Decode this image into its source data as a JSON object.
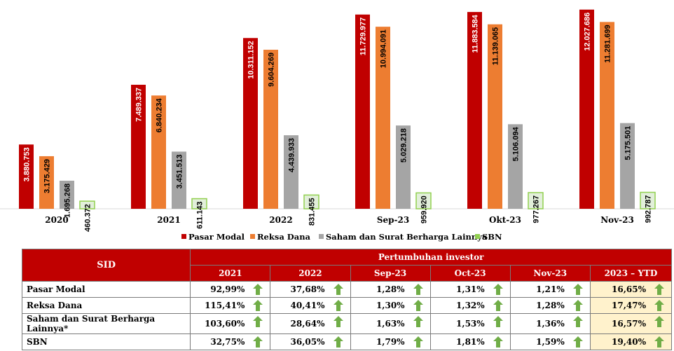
{
  "chart_data": {
    "type": "bar",
    "categories": [
      "2020",
      "2021",
      "2022",
      "Sep-23",
      "Okt-23",
      "Nov-23"
    ],
    "series": [
      {
        "name": "Pasar Modal",
        "color": "#c00000",
        "values": [
          3880753,
          7489337,
          10311152,
          11729977,
          11883584,
          12027686
        ],
        "labels": [
          "3.880.753",
          "7.489.337",
          "10.311.152",
          "11.729.977",
          "11.883.584",
          "12.027.686"
        ]
      },
      {
        "name": "Reksa Dana",
        "color": "#ed7d31",
        "values": [
          3175429,
          6840234,
          9604269,
          10994091,
          11139065,
          11281699
        ],
        "labels": [
          "3.175.429",
          "6.840.234",
          "9.604.269",
          "10.994.091",
          "11.139.065",
          "11.281.699"
        ]
      },
      {
        "name": "Saham dan Surat Berharga Lainnya",
        "color": "#a5a5a5",
        "values": [
          1695268,
          3451513,
          4439933,
          5029218,
          5106094,
          5175501
        ],
        "labels": [
          "1.695.268",
          "3.451.513",
          "4.439.933",
          "5.029.218",
          "5.106.094",
          "5.175.501"
        ]
      },
      {
        "name": "SBN",
        "color": "#92d050",
        "values": [
          460372,
          611143,
          831455,
          959920,
          977267,
          992787
        ],
        "labels": [
          "460.372",
          "611.143",
          "831.455",
          "959.920",
          "977.267",
          "992.787"
        ]
      }
    ],
    "ylim": [
      0,
      12100000
    ],
    "legend_position": "bottom"
  },
  "table": {
    "header_label": "SID",
    "group_label": "Pertumbuhan investor",
    "columns": [
      "2021",
      "2022",
      "Sep-23",
      "Oct-23",
      "Nov-23",
      "2023 – YTD"
    ],
    "rows": [
      {
        "label": "Pasar Modal",
        "values": [
          "92,99%",
          "37,68%",
          "1,28%",
          "1,31%",
          "1,21%",
          "16,65%"
        ]
      },
      {
        "label": "Reksa Dana",
        "values": [
          "115,41%",
          "40,41%",
          "1,30%",
          "1,32%",
          "1,28%",
          "17,47%"
        ]
      },
      {
        "label": "Saham dan Surat Berharga Lainnya*",
        "values": [
          "103,60%",
          "28,64%",
          "1,63%",
          "1,53%",
          "1,36%",
          "16,57%"
        ]
      },
      {
        "label": "SBN",
        "values": [
          "32,75%",
          "36,05%",
          "1,79%",
          "1,81%",
          "1,59%",
          "19,40%"
        ]
      }
    ],
    "arrow_icon": "up-arrow-icon",
    "arrow_color": "#70ad47",
    "ytd_highlight_color": "#fff2cc"
  }
}
